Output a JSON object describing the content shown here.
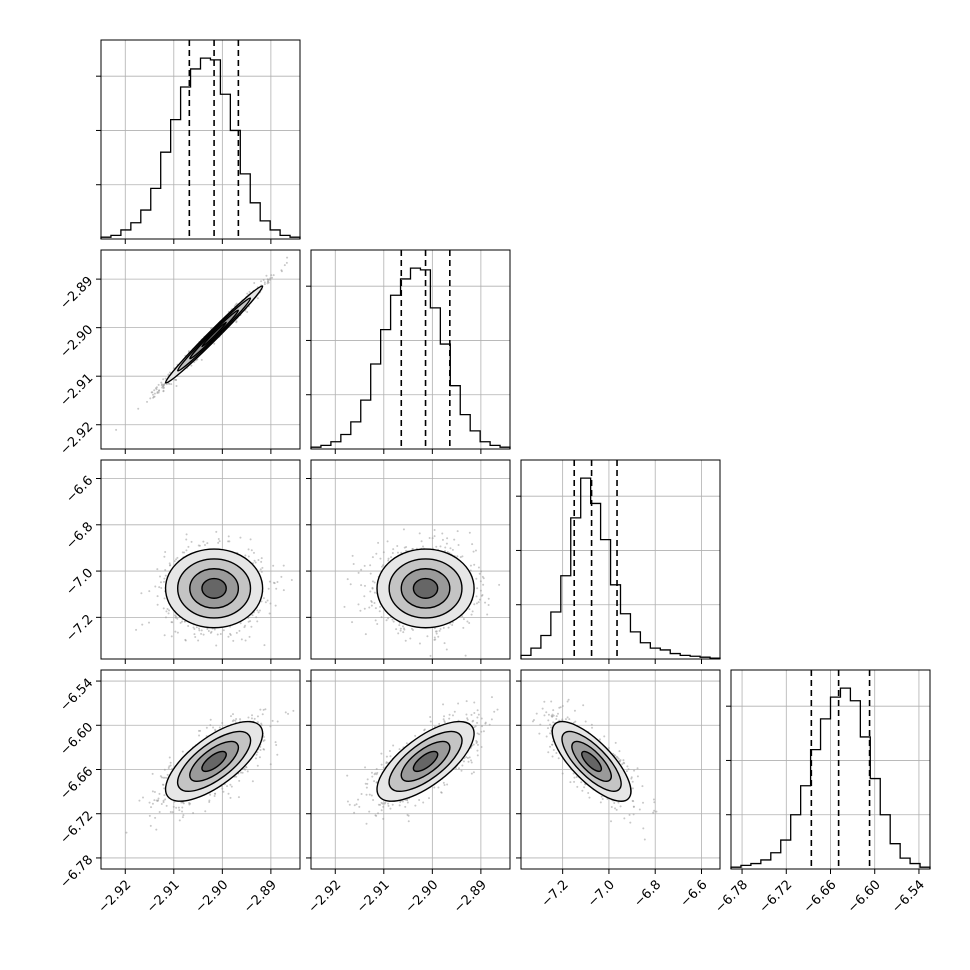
{
  "chart_data": {
    "type": "corner",
    "n_params": 4,
    "params": [
      {
        "range": [
          -2.925,
          -2.884
        ],
        "ticks": [
          -2.92,
          -2.91,
          -2.9,
          -2.89
        ],
        "tick_labels": [
          "−2.92",
          "−2.91",
          "−2.90",
          "−2.89"
        ]
      },
      {
        "range": [
          -2.925,
          -2.884
        ],
        "ticks": [
          -2.92,
          -2.91,
          -2.9,
          -2.89
        ],
        "tick_labels": [
          "−2.92",
          "−2.91",
          "−2.90",
          "−2.89"
        ]
      },
      {
        "range": [
          -7.38,
          -6.52
        ],
        "ticks": [
          -7.2,
          -7.0,
          -6.8,
          -6.6
        ],
        "tick_labels": [
          "−7.2",
          "−7.0",
          "−6.8",
          "−6.6"
        ]
      },
      {
        "range": [
          -6.795,
          -6.525
        ],
        "ticks": [
          -6.78,
          -6.72,
          -6.66,
          -6.6,
          -6.54
        ],
        "tick_labels": [
          "−6.78",
          "−6.72",
          "−6.66",
          "−6.60",
          "−6.54"
        ]
      }
    ],
    "histograms": [
      {
        "param": 0,
        "counts": [
          0.01,
          0.02,
          0.05,
          0.09,
          0.16,
          0.28,
          0.48,
          0.66,
          0.84,
          0.94,
          1.0,
          0.99,
          0.8,
          0.6,
          0.36,
          0.2,
          0.1,
          0.05,
          0.02,
          0.01
        ],
        "quantiles": [
          -2.9068,
          -2.9017,
          -2.8967
        ]
      },
      {
        "param": 1,
        "counts": [
          0.01,
          0.02,
          0.04,
          0.08,
          0.15,
          0.27,
          0.47,
          0.66,
          0.85,
          0.94,
          1.0,
          0.99,
          0.78,
          0.58,
          0.35,
          0.19,
          0.1,
          0.04,
          0.02,
          0.01
        ],
        "quantiles": [
          -2.9064,
          -2.9014,
          -2.8964
        ]
      },
      {
        "param": 2,
        "counts": [
          0.02,
          0.06,
          0.13,
          0.26,
          0.46,
          0.78,
          1.0,
          0.86,
          0.66,
          0.41,
          0.25,
          0.15,
          0.09,
          0.06,
          0.05,
          0.03,
          0.02,
          0.015,
          0.01,
          0.005
        ],
        "quantiles": [
          -7.15,
          -7.075,
          -6.965
        ]
      },
      {
        "param": 3,
        "counts": [
          0.01,
          0.02,
          0.03,
          0.05,
          0.09,
          0.16,
          0.3,
          0.46,
          0.66,
          0.83,
          0.95,
          1.0,
          0.93,
          0.73,
          0.5,
          0.3,
          0.14,
          0.06,
          0.03,
          0.01
        ],
        "quantiles": [
          -6.686,
          -6.649,
          -6.607
        ]
      }
    ],
    "pairs": [
      {
        "x": 0,
        "y": 1,
        "mean": [
          -2.9017,
          -2.9014
        ],
        "sd": [
          0.005,
          0.005
        ],
        "rho": 0.99
      },
      {
        "x": 0,
        "y": 2,
        "mean": [
          -2.9017,
          -7.075
        ],
        "sd": [
          0.005,
          0.085
        ],
        "rho": 0.0
      },
      {
        "x": 1,
        "y": 2,
        "mean": [
          -2.9014,
          -7.075
        ],
        "sd": [
          0.005,
          0.085
        ],
        "rho": 0.0
      },
      {
        "x": 0,
        "y": 3,
        "mean": [
          -2.9017,
          -6.649
        ],
        "sd": [
          0.005,
          0.027
        ],
        "rho": 0.7
      },
      {
        "x": 1,
        "y": 3,
        "mean": [
          -2.9014,
          -6.649
        ],
        "sd": [
          0.005,
          0.027
        ],
        "rho": 0.7
      },
      {
        "x": 2,
        "y": 3,
        "mean": [
          -7.075,
          -6.649
        ],
        "sd": [
          0.085,
          0.027
        ],
        "rho": -0.75
      }
    ],
    "contour_levels_sigma": [
      0.5,
      1.0,
      1.5,
      2.0
    ],
    "grid": true,
    "quantile_line_style": "dashed",
    "colors": {
      "lines": "#000000",
      "points": "#9a9a9a",
      "grid": "#b0b0b0"
    }
  }
}
